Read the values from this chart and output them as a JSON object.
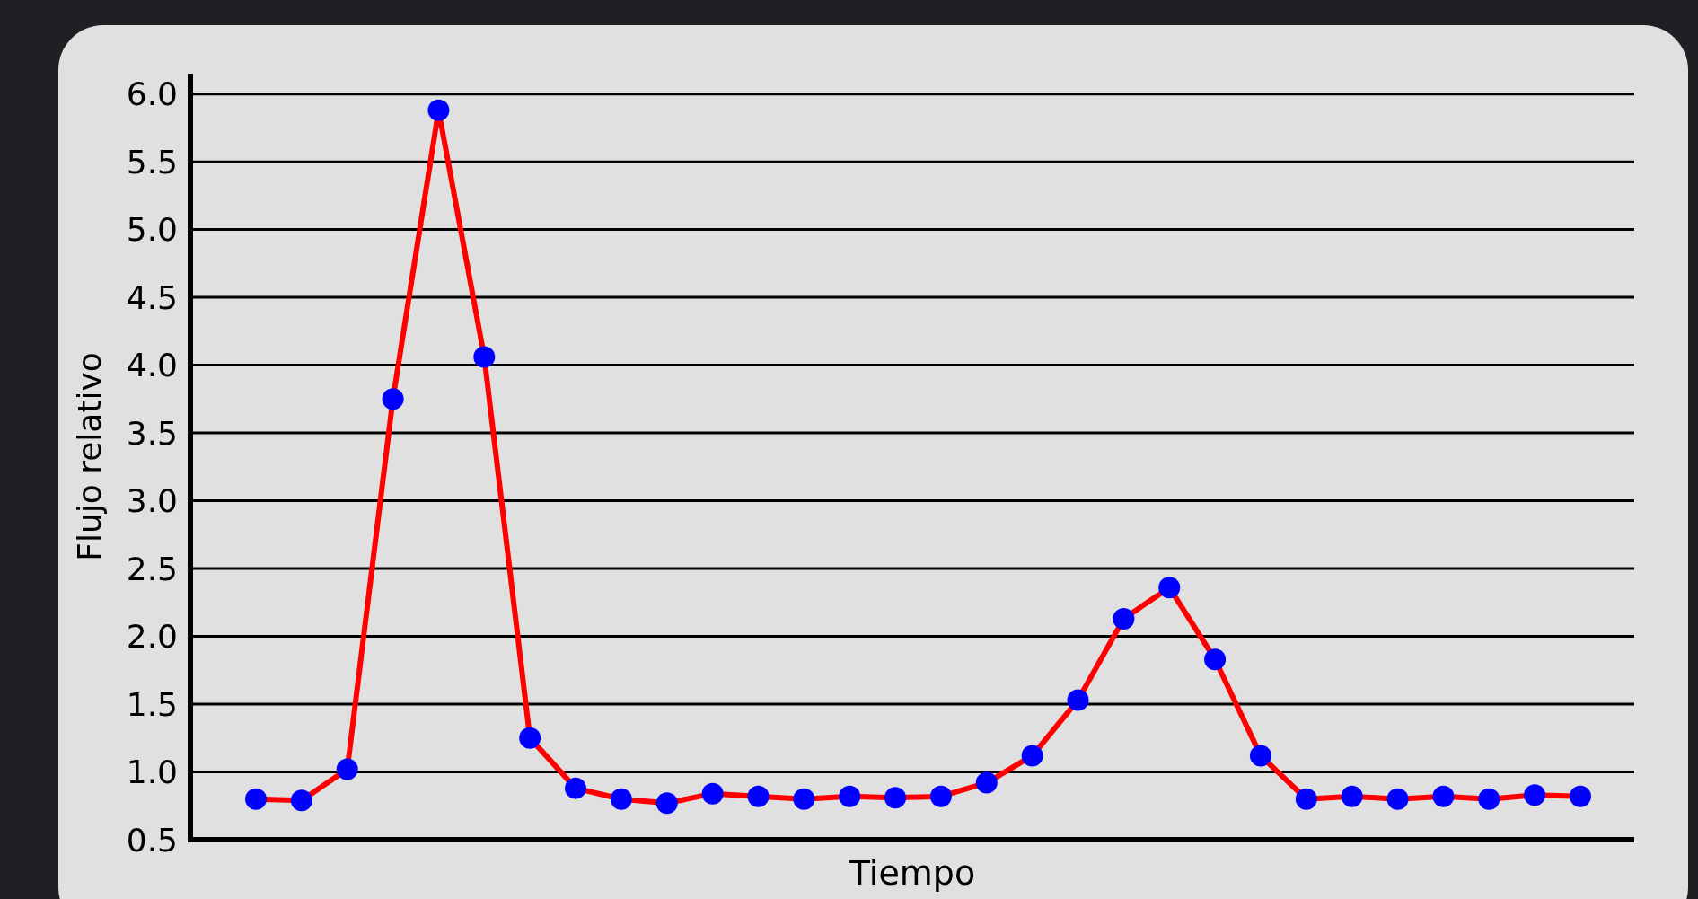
{
  "chart_data": {
    "type": "line",
    "xlabel": "Tiempo",
    "ylabel": "Flujo relativo",
    "categories": [
      null,
      null,
      null,
      null,
      null,
      null,
      null,
      null,
      null,
      null,
      null,
      null,
      null,
      null,
      null,
      null,
      null,
      null,
      null,
      null,
      null,
      null,
      null,
      null,
      null,
      null,
      null,
      null,
      null,
      null
    ],
    "series": [
      {
        "color": "#ff0000",
        "colors": [
          "#0000ff",
          "#0000ff",
          "#0000ff",
          "#0000ff",
          "#0000ff",
          "#0000ff",
          "#0000ff",
          "#0000ff",
          "#0000ff",
          "#0000ff",
          "#0000ff",
          "#0000ff",
          "#0000ff",
          "#0000ff",
          "#0000ff",
          "#0000ff",
          "#0000ff",
          "#0000ff",
          "#0000ff",
          "#0000ff",
          "#0000ff",
          "#0000ff",
          "#0000ff",
          "#0000ff",
          "#0000ff",
          "#0000ff",
          "#0000ff",
          "#0000ff",
          "#0000ff",
          "#0000ff"
        ],
        "values": [
          0.8,
          0.79,
          1.02,
          3.75,
          5.88,
          4.06,
          1.25,
          0.88,
          0.8,
          0.77,
          0.84,
          0.82,
          0.8,
          0.82,
          0.81,
          0.82,
          0.92,
          1.12,
          1.53,
          2.13,
          2.36,
          1.83,
          1.12,
          0.8,
          0.82,
          0.8,
          0.82,
          0.8,
          0.83,
          0.82
        ]
      }
    ],
    "ylim": [
      0.5,
      6.15
    ],
    "yticks": [
      0.5,
      {
        "value": 1,
        "label": "1.0"
      },
      1.5,
      {
        "value": 2,
        "label": "2.0"
      },
      2.5,
      {
        "value": 3,
        "label": "3.0"
      },
      3.5,
      {
        "value": 4,
        "label": "4.0"
      },
      4.5,
      {
        "value": 5,
        "label": "5.0"
      },
      5.5,
      {
        "value": 6,
        "label": "6.0"
      }
    ],
    "grid": "y",
    "marker": "circle",
    "line_style": "solid"
  }
}
